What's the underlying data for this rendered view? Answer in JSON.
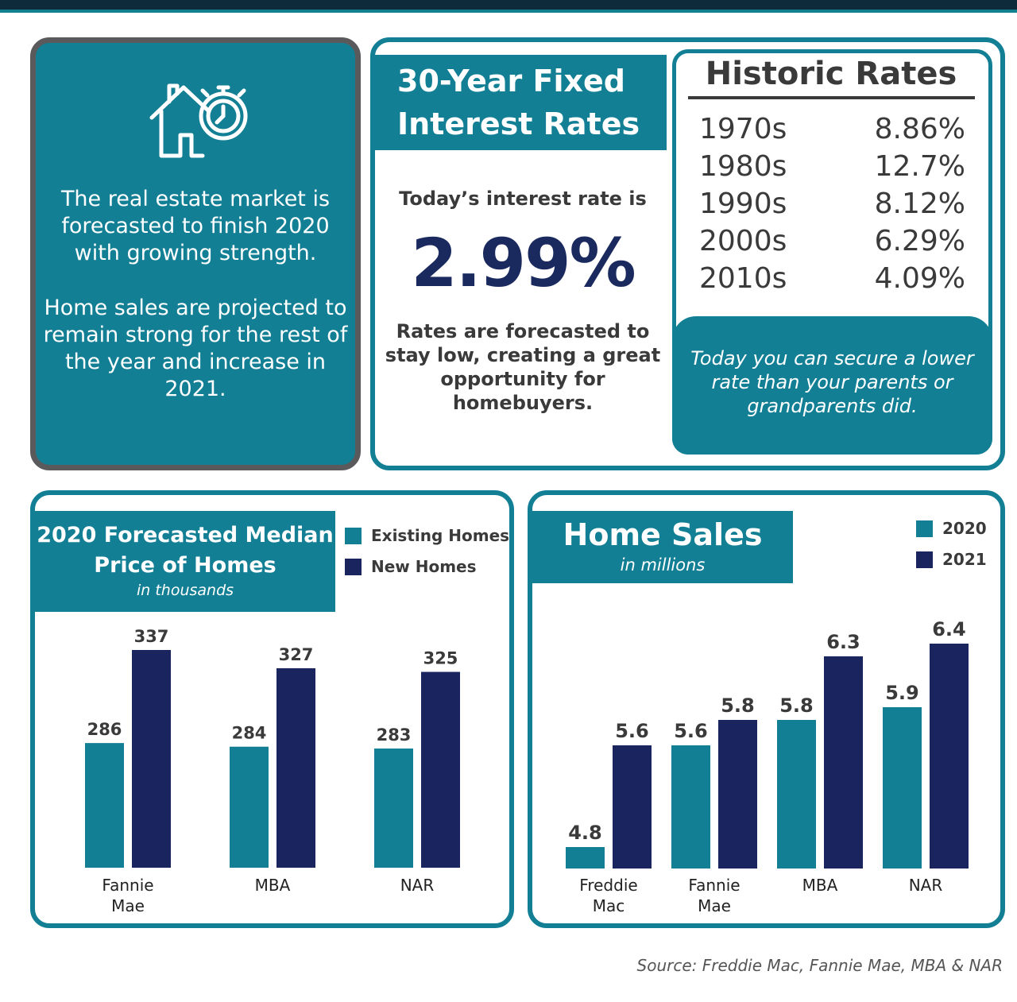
{
  "colors": {
    "teal": "#137f95",
    "navy": "#1a2560",
    "gray_text": "#3a3a3a",
    "frame_gray": "#5a5a5c"
  },
  "intro": {
    "icon": "house-clock-icon",
    "paragraph1": "The real estate market is forecasted to finish 2020 with growing strength.",
    "paragraph2": "Home sales are projected to remain strong for the rest of the year and increase in 2021."
  },
  "interest": {
    "title_line1": "30-Year Fixed",
    "title_line2": "Interest Rates",
    "today_label": "Today’s interest rate is",
    "today_rate": "2.99%",
    "forecast_text": "Rates are forecasted to stay low, creating a great opportunity for homebuyers."
  },
  "historic": {
    "title": "Historic Rates",
    "rows": [
      {
        "decade": "1970s",
        "rate": "8.86%"
      },
      {
        "decade": "1980s",
        "rate": "12.7%"
      },
      {
        "decade": "1990s",
        "rate": "8.12%"
      },
      {
        "decade": "2000s",
        "rate": "6.29%"
      },
      {
        "decade": "2010s",
        "rate": "4.09%"
      }
    ],
    "footer": "Today you can secure a lower rate than your parents or grandparents did."
  },
  "source": "Source: Freddie Mac, Fannie Mae, MBA & NAR",
  "chart_data": [
    {
      "type": "bar",
      "title": "2020 Forecasted Median Price of Homes",
      "subtitle": "in thousands",
      "categories": [
        "Fannie Mae",
        "MBA",
        "NAR"
      ],
      "series": [
        {
          "name": "Existing Homes",
          "values": [
            286,
            284,
            283
          ],
          "color": "#137f95"
        },
        {
          "name": "New Homes",
          "values": [
            337,
            327,
            325
          ],
          "color": "#1a2560"
        }
      ],
      "legend": "top-right",
      "grid": false
    },
    {
      "type": "bar",
      "title": "Home Sales",
      "subtitle": "in millions",
      "categories": [
        "Freddie Mac",
        "Fannie Mae",
        "MBA",
        "NAR"
      ],
      "series": [
        {
          "name": "2020",
          "values": [
            4.8,
            5.6,
            5.8,
            5.9
          ],
          "color": "#137f95"
        },
        {
          "name": "2021",
          "values": [
            5.6,
            5.8,
            6.3,
            6.4
          ],
          "color": "#1a2560"
        }
      ],
      "legend": "top-right",
      "grid": false
    }
  ]
}
